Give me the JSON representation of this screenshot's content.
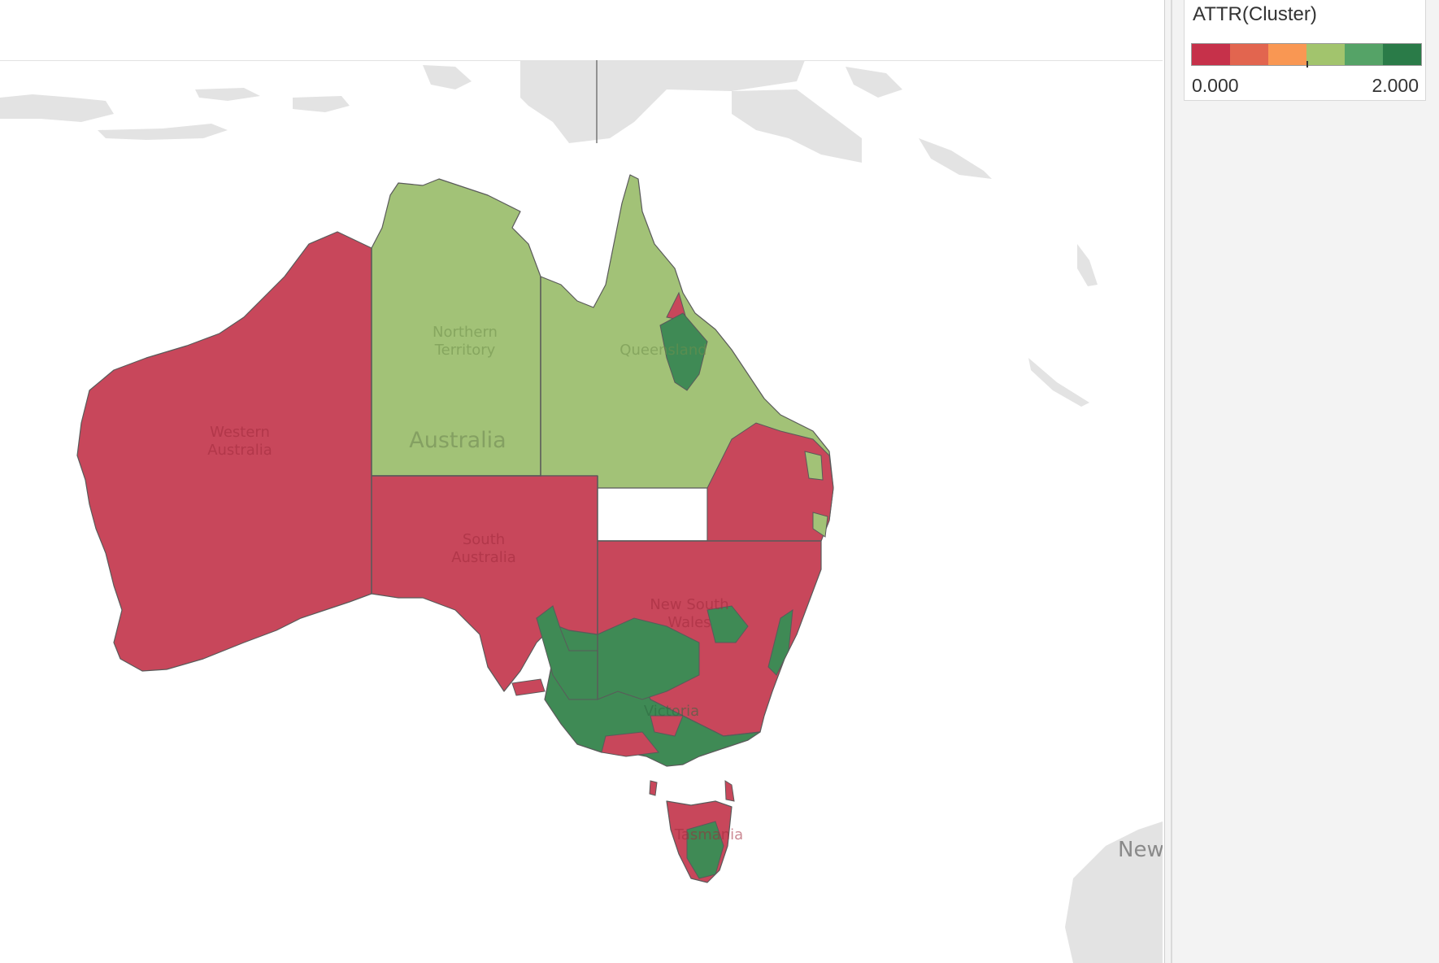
{
  "map": {
    "country_label": "Australia",
    "foreign_label": "New",
    "cluster_colors": {
      "cluster_0": "#c8475b",
      "cluster_1": "#a2c277",
      "cluster_2": "#3f8a55",
      "border": "#5a5a5a",
      "neighbor_land": "#e3e3e3"
    },
    "regions": [
      {
        "key": "wa",
        "label": "Western\nAustralia",
        "cluster": 0
      },
      {
        "key": "nt",
        "label": "Northern\nTerritory",
        "cluster": 1
      },
      {
        "key": "sa",
        "label": "South\nAustralia",
        "cluster": 0
      },
      {
        "key": "qld",
        "label": "Queensland",
        "cluster": 1
      },
      {
        "key": "nsw",
        "label": "New South\nWales",
        "cluster": 0
      },
      {
        "key": "vic",
        "label": "Victoria",
        "cluster": 2
      },
      {
        "key": "tas",
        "label": "Tasmania",
        "cluster": 0
      }
    ]
  },
  "legend": {
    "title": "ATTR(Cluster)",
    "min_label": "0.000",
    "max_label": "2.000",
    "colors": [
      "#c6314a",
      "#e2654f",
      "#f99753",
      "#a2c46d",
      "#55a367",
      "#2a7b48"
    ]
  }
}
